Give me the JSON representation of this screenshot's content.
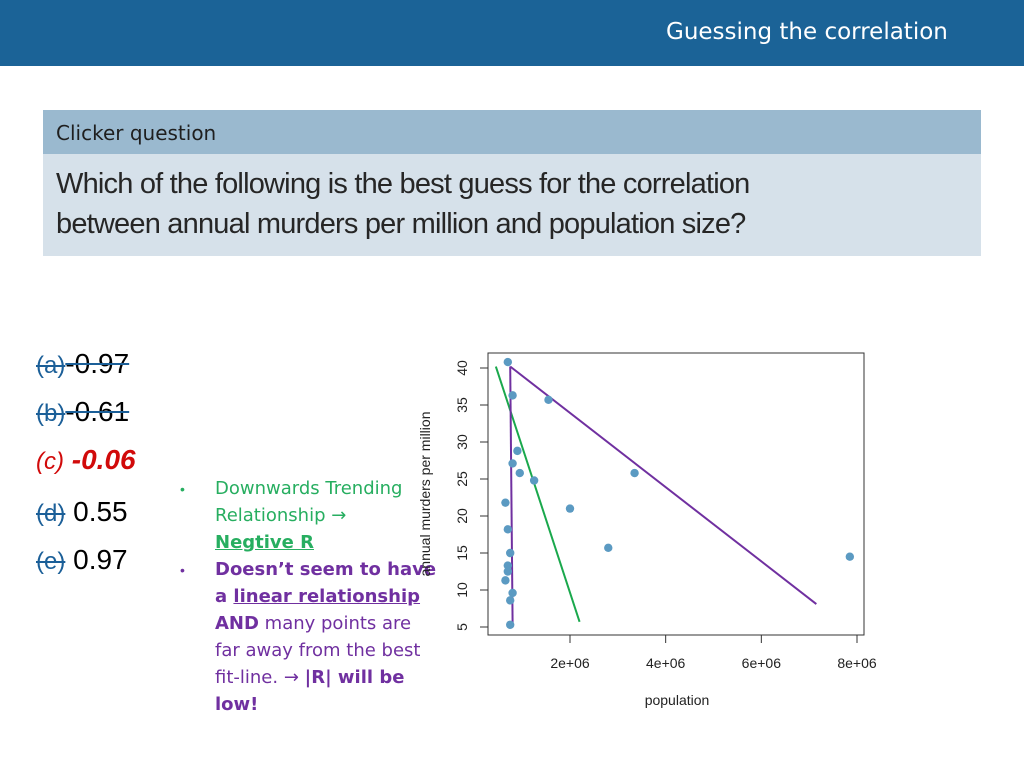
{
  "header": {
    "title": "Guessing the correlation"
  },
  "question": {
    "label": "Clicker question",
    "line1": "Which of the following is the best guess for the correlation",
    "line2": "between annual murders per million and population  size?"
  },
  "options": [
    {
      "letter": "(a)",
      "value": "-0.97"
    },
    {
      "letter": "(b)",
      "value": "-0.61"
    },
    {
      "letter": "(c)",
      "value": "-0.06"
    },
    {
      "letter": "(d)",
      "value": "0.55"
    },
    {
      "letter": "(e)",
      "value": "0.97"
    }
  ],
  "notes": {
    "bullet1_line1": "Downwards Trending",
    "bullet1_line2": "Relationship →",
    "bullet1_line3": "Negtive R",
    "bullet2_line1": "Doesn’t seem to have",
    "bullet2_a": "a ",
    "bullet2_linear": "linear relationship",
    "bullet2_and": "AND",
    "bullet2_rest1": " many points are",
    "bullet2_line4": "far away from the best",
    "bullet2_fit": "fit-line. ",
    "bullet2_arrow": "→ ",
    "bullet2_r": "|R| will be",
    "bullet2_low": "low!",
    "bullet_symbol": "•"
  },
  "colors": {
    "header_bg": "#1b6397",
    "point": "#5b9ac2",
    "green_line": "#1aa84c",
    "purple_line": "#7030a0",
    "correct": "#d10a0a"
  },
  "chart_data": {
    "type": "scatter",
    "xlabel": "population",
    "ylabel": "annual murders per million",
    "xlim": [
      0,
      8000000
    ],
    "ylim": [
      5,
      40
    ],
    "x_ticks": [
      2000000,
      4000000,
      6000000,
      8000000
    ],
    "x_tick_labels": [
      "2e+06",
      "4e+06",
      "6e+06",
      "8e+06"
    ],
    "y_ticks": [
      5,
      10,
      15,
      20,
      25,
      30,
      35,
      40
    ],
    "y_tick_labels": [
      "5",
      "10",
      "15",
      "20",
      "25",
      "30",
      "35",
      "40"
    ],
    "points": [
      {
        "x": 700000,
        "y": 40.8
      },
      {
        "x": 800000,
        "y": 36.3
      },
      {
        "x": 1550000,
        "y": 35.7
      },
      {
        "x": 900000,
        "y": 28.8
      },
      {
        "x": 800000,
        "y": 27.1
      },
      {
        "x": 950000,
        "y": 25.8
      },
      {
        "x": 1250000,
        "y": 24.8
      },
      {
        "x": 650000,
        "y": 21.8
      },
      {
        "x": 2000000,
        "y": 21.0
      },
      {
        "x": 700000,
        "y": 18.2
      },
      {
        "x": 2800000,
        "y": 15.7
      },
      {
        "x": 750000,
        "y": 15.0
      },
      {
        "x": 700000,
        "y": 13.3
      },
      {
        "x": 700000,
        "y": 12.5
      },
      {
        "x": 3350000,
        "y": 25.8
      },
      {
        "x": 7850000,
        "y": 14.5
      },
      {
        "x": 650000,
        "y": 11.3
      },
      {
        "x": 800000,
        "y": 9.6
      },
      {
        "x": 750000,
        "y": 8.6
      },
      {
        "x": 750000,
        "y": 5.3
      }
    ],
    "lines": [
      {
        "color": "#1aa84c",
        "from": [
          450000,
          40.2
        ],
        "to": [
          2200000,
          5.7
        ]
      },
      {
        "color": "#7030a0",
        "from": [
          750000,
          40.2
        ],
        "to": [
          800000,
          5.5
        ]
      },
      {
        "color": "#7030a0",
        "from": [
          750000,
          40.2
        ],
        "to": [
          7150000,
          8.1
        ]
      }
    ]
  }
}
